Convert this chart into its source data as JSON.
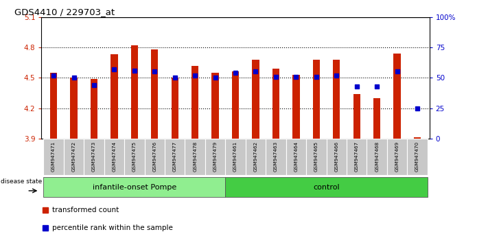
{
  "title": "GDS4410 / 229703_at",
  "samples": [
    "GSM947471",
    "GSM947472",
    "GSM947473",
    "GSM947474",
    "GSM947475",
    "GSM947476",
    "GSM947477",
    "GSM947478",
    "GSM947479",
    "GSM947461",
    "GSM947462",
    "GSM947463",
    "GSM947464",
    "GSM947465",
    "GSM947466",
    "GSM947467",
    "GSM947468",
    "GSM947469",
    "GSM947470"
  ],
  "transformed_counts": [
    4.55,
    4.5,
    4.49,
    4.73,
    4.82,
    4.78,
    4.5,
    4.62,
    4.55,
    4.56,
    4.68,
    4.59,
    4.53,
    4.68,
    4.68,
    4.34,
    4.3,
    4.74,
    3.91
  ],
  "percentile_ranks": [
    52,
    50,
    44,
    57,
    56,
    55,
    50,
    52,
    50,
    54,
    55,
    51,
    51,
    51,
    52,
    43,
    43,
    55,
    25
  ],
  "group_labels": [
    "infantile-onset Pompe",
    "control"
  ],
  "group_sizes": [
    9,
    10
  ],
  "bar_color": "#cc2200",
  "percentile_color": "#0000cc",
  "ymin": 3.9,
  "ymax": 5.1,
  "yticks_left": [
    3.9,
    4.2,
    4.5,
    4.8,
    5.1
  ],
  "yticks_right": [
    0,
    25,
    50,
    75,
    100
  ],
  "dotted_lines": [
    4.2,
    4.5,
    4.8
  ],
  "disease_state_label": "disease state",
  "legend_bar_label": "transformed count",
  "legend_pct_label": "percentile rank within the sample",
  "background_color": "#ffffff"
}
